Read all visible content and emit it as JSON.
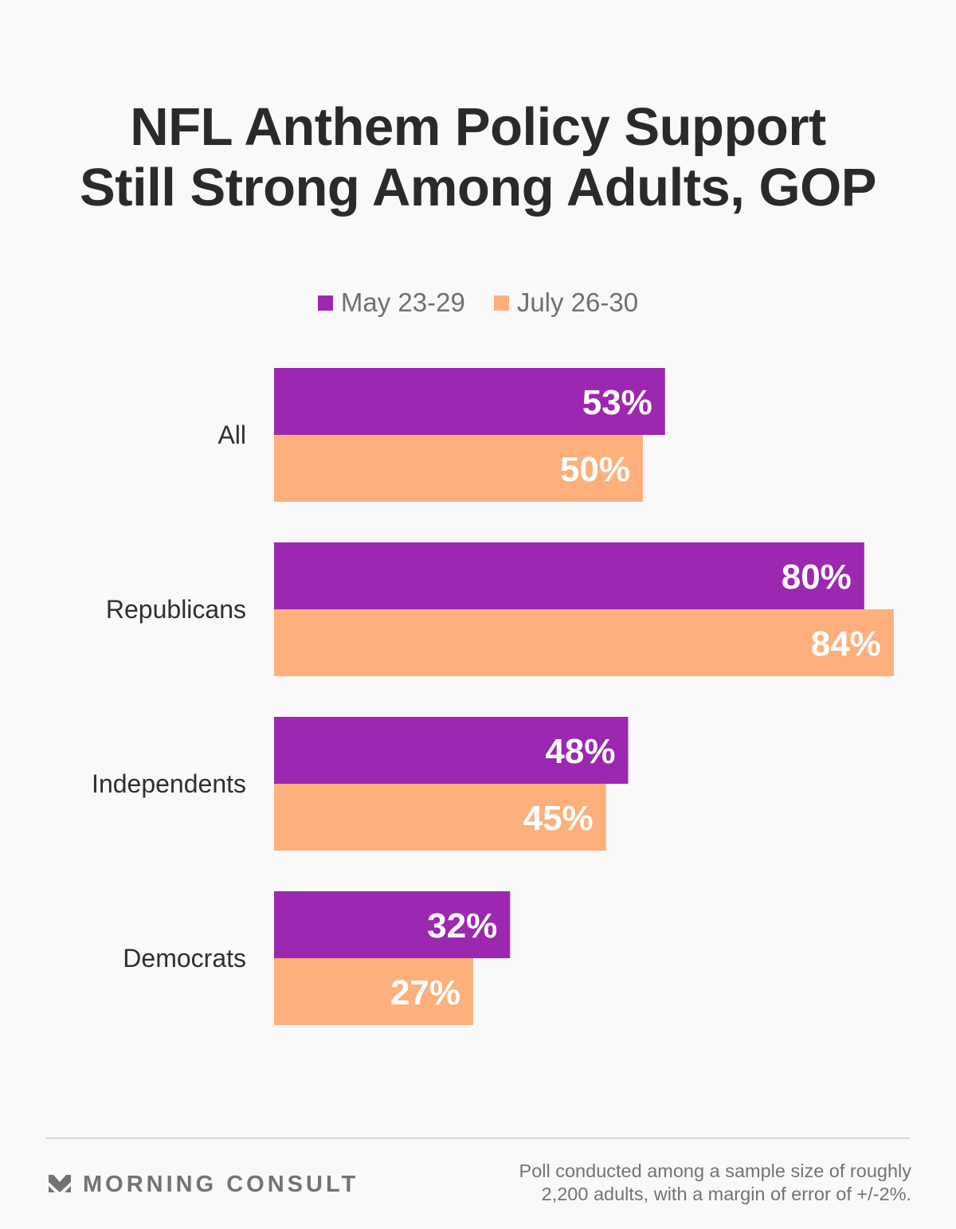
{
  "title_lines": [
    "NFL Anthem Policy Support",
    "Still Strong Among Adults, GOP"
  ],
  "colors": {
    "may": "#9c27b0",
    "july": "#fdb07b",
    "background": "#f9f9f9",
    "title": "#2a2a2a",
    "muted": "#737373"
  },
  "chart_data": {
    "type": "bar",
    "orientation": "horizontal",
    "title": "NFL Anthem Policy Support Still Strong Among Adults, GOP",
    "categories": [
      "All",
      "Republicans",
      "Independents",
      "Democrats"
    ],
    "series": [
      {
        "name": "May 23-29",
        "color": "#9c27b0",
        "values": [
          53,
          80,
          48,
          32
        ],
        "labels": [
          "53%",
          "80%",
          "48%",
          "32%"
        ]
      },
      {
        "name": "July 26-30",
        "color": "#fdb07b",
        "values": [
          50,
          84,
          45,
          27
        ],
        "labels": [
          "50%",
          "84%",
          "45%",
          "27%"
        ]
      }
    ],
    "xlabel": "",
    "ylabel": "",
    "unit": "%",
    "xlim": [
      0,
      84
    ],
    "grid": false,
    "legend": "top-center"
  },
  "footer": {
    "brand": "MORNING CONSULT",
    "brand_icon": "morning-consult-chevron-logo",
    "note_lines": [
      "Poll conducted among a sample size of roughly",
      "2,200 adults, with a margin of error of +/-2%."
    ]
  }
}
